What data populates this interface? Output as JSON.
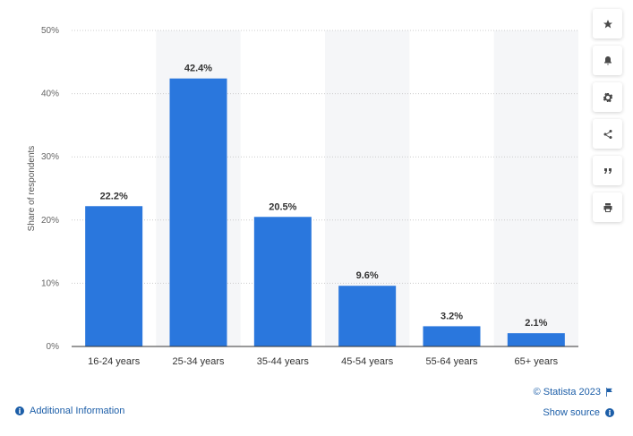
{
  "chart_data": {
    "type": "bar",
    "categories": [
      "16-24 years",
      "25-34 years",
      "35-44 years",
      "45-54 years",
      "55-64 years",
      "65+ years"
    ],
    "values": [
      22.2,
      42.4,
      20.5,
      9.6,
      3.2,
      2.1
    ],
    "data_labels": [
      "22.2%",
      "42.4%",
      "20.5%",
      "9.6%",
      "3.2%",
      "2.1%"
    ],
    "title": "",
    "xlabel": "",
    "ylabel": "Share of respondents",
    "ylim": [
      0,
      50
    ],
    "yticks": [
      0,
      10,
      20,
      30,
      40,
      50
    ],
    "ytick_labels": [
      "0%",
      "10%",
      "20%",
      "30%",
      "40%",
      "50%"
    ],
    "grid": true,
    "bar_color": "#2a77dd",
    "band_color": "#f5f6f8"
  },
  "toolbar": {
    "buttons": [
      {
        "icon": "star-icon",
        "name": "favorite-button"
      },
      {
        "icon": "bell-icon",
        "name": "notification-button"
      },
      {
        "icon": "gear-icon",
        "name": "settings-button"
      },
      {
        "icon": "share-icon",
        "name": "share-button"
      },
      {
        "icon": "quote-icon",
        "name": "cite-button"
      },
      {
        "icon": "print-icon",
        "name": "print-button"
      }
    ]
  },
  "footer": {
    "additional_info": "Additional Information",
    "copyright": "© Statista 2023",
    "show_source": "Show source",
    "info_glyph": "i"
  }
}
